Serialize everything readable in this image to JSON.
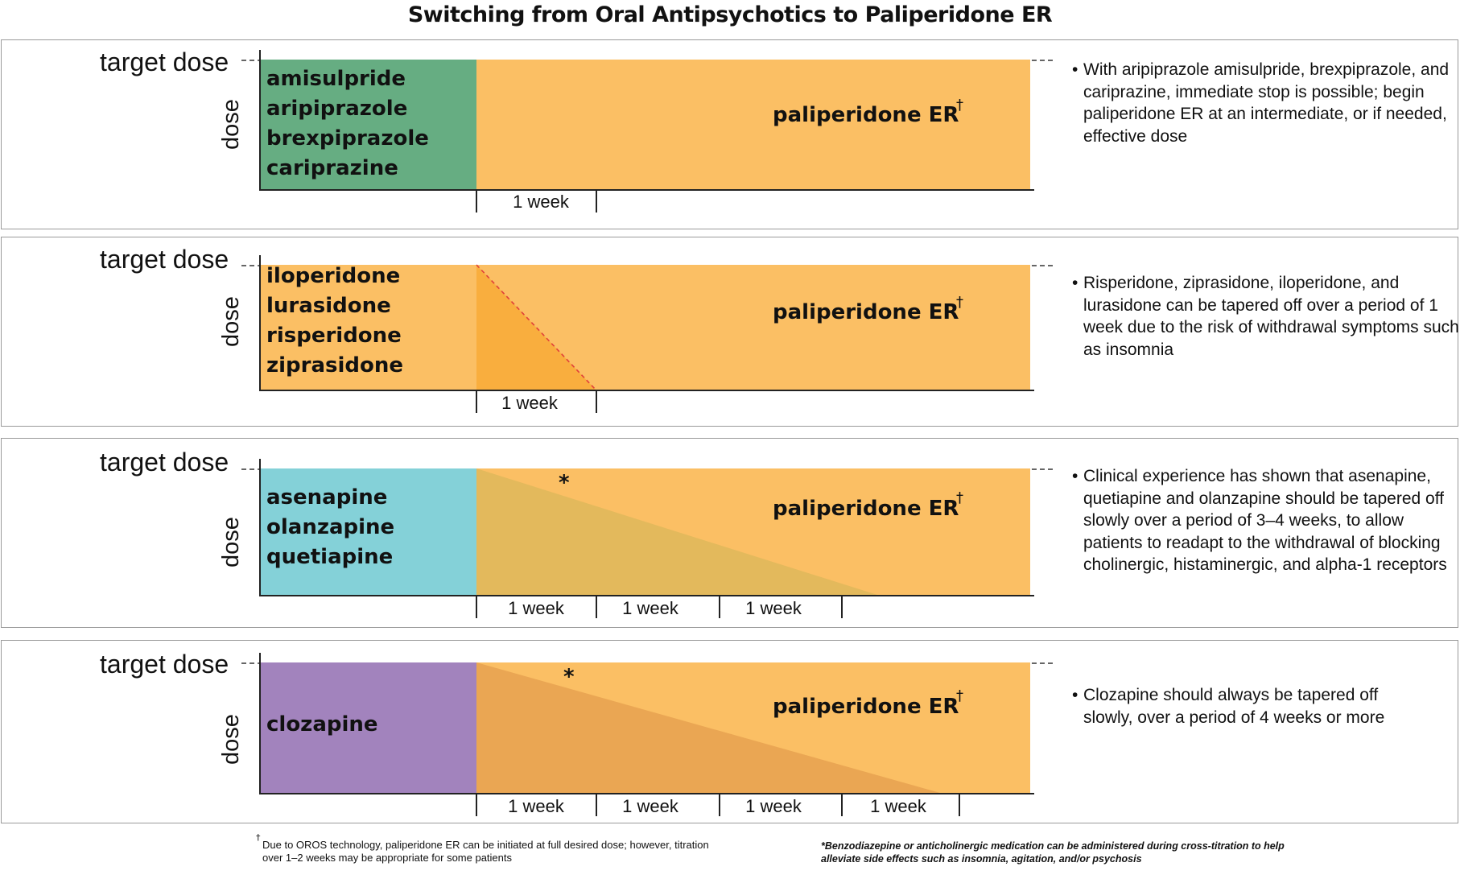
{
  "title": "Switching from Oral Antipsychotics to Paliperidone ER",
  "colors": {
    "paliperidone": "#fbbf64",
    "green": "#66ad82",
    "orange_block": "#fbbf64",
    "cyan": "#84d1d8",
    "purple": "#a283bd",
    "taper_panel2": "#f9ae3e",
    "taper_panel3": "#e3b95c",
    "taper_panel4": "#eaa653",
    "dash_red": "#e0403a"
  },
  "axis": {
    "target_label": "target dose",
    "dose_label": "dose"
  },
  "week_label": "1 week",
  "panels": [
    {
      "drugs": [
        "amisulpride",
        "aripiprazole",
        "brexpiprazole",
        "cariprazine"
      ],
      "paliperidone_label": "paliperidone ER",
      "dagger": "†",
      "taper_weeks": 0,
      "week_count": 1,
      "note": "With aripiprazole amisulpride, brexpiprazole, and cariprazine, immediate stop is possible; begin paliperidone ER at an intermediate, or if needed, effective dose"
    },
    {
      "drugs": [
        "iloperidone",
        "lurasidone",
        "risperidone",
        "ziprasidone"
      ],
      "paliperidone_label": "paliperidone ER",
      "dagger": "†",
      "taper_weeks": 1,
      "week_count": 1,
      "note": "Risperidone, ziprasidone, iloperidone, and lurasidone can be tapered off over a period of 1 week due to the risk of withdrawal symptoms such as insomnia"
    },
    {
      "drugs": [
        "asenapine",
        "olanzapine",
        "quetiapine"
      ],
      "paliperidone_label": "paliperidone ER",
      "dagger": "†",
      "star": "*",
      "taper_weeks": 3.3,
      "week_count": 3,
      "note": "Clinical experience has shown that asenapine, quetiapine and olanzapine should be tapered off slowly over a period of 3–4 weeks, to allow patients to readapt to the withdrawal of blocking cholinergic, histaminergic, and alpha-1 receptors"
    },
    {
      "drugs": [
        "clozapine"
      ],
      "paliperidone_label": "paliperidone ER",
      "dagger": "†",
      "star": "*",
      "taper_weeks": 3.8,
      "week_count": 4,
      "note": "Clozapine should always be tapered off slowly, over a period of 4 weeks or more"
    }
  ],
  "footnotes": {
    "dagger_mark": "†",
    "dagger": "Due to OROS technology, paliperidone ER can be initiated at full desired dose; however, titration over 1–2 weeks may be appropriate for some patients",
    "star": "*Benzodiazepine or anticholinergic medication can be administered during cross-titration to help alleviate side effects such as insomnia, agitation, and/or psychosis"
  }
}
